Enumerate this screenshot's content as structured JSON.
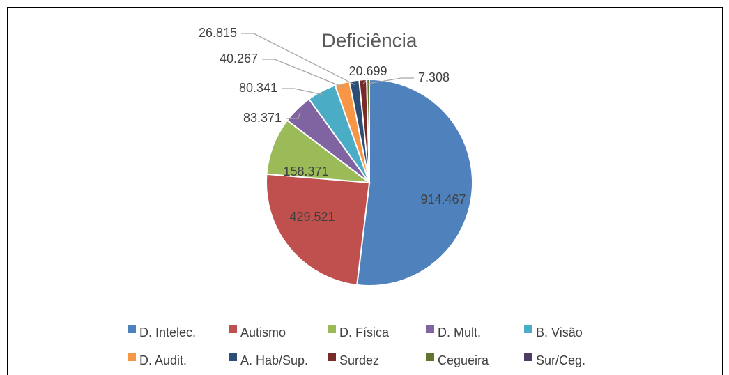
{
  "chart_data": {
    "type": "pie",
    "title": "Deficiência",
    "categories": [
      "D. Intelec.",
      "Autismo",
      "D. Física",
      "D. Mult.",
      "B. Visão",
      "D. Audit.",
      "A. Hab/Sup.",
      "Surdez",
      "Cegueira",
      "Sur/Ceg."
    ],
    "values": [
      914467,
      429521,
      158371,
      83371,
      80341,
      40267,
      26815,
      20699,
      7308,
      null
    ],
    "value_labels": [
      "914.467",
      "429.521",
      "158.371",
      "83.371",
      "80.341",
      "40.267",
      "26.815",
      "20.699",
      "7.308",
      null
    ],
    "colors": [
      "#4f81bd",
      "#c0504d",
      "#9bbb59",
      "#8064a2",
      "#4bacc6",
      "#f79646",
      "#2c4d75",
      "#772c2a",
      "#5f7530",
      "#4d3b62"
    ],
    "legend": "bottom"
  }
}
